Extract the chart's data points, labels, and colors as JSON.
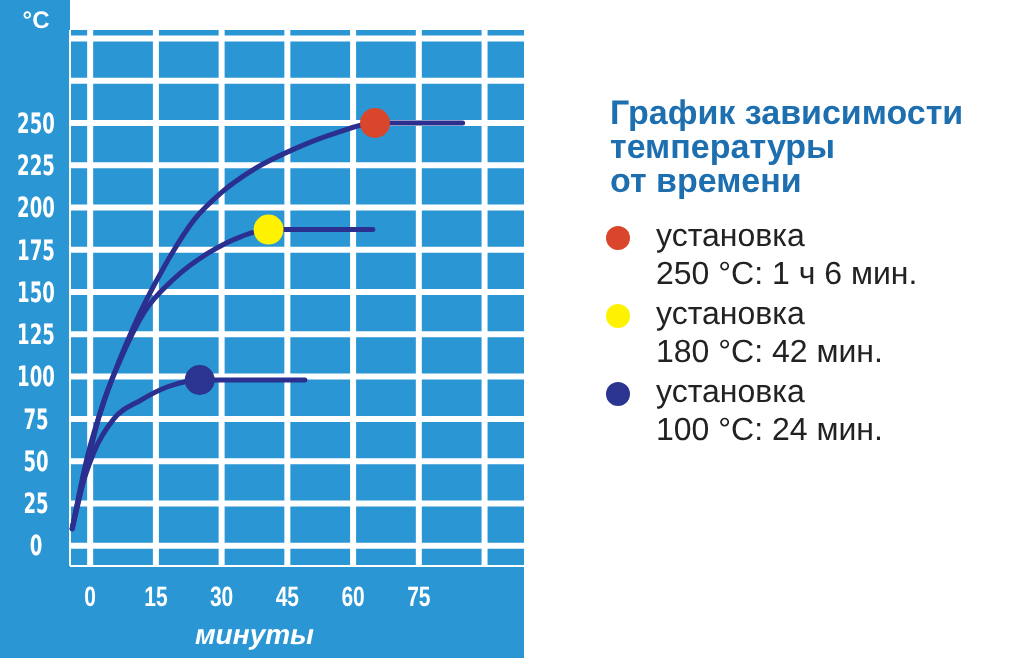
{
  "chart_data": {
    "type": "line",
    "title": "График зависимости температуры от времени",
    "xlabel": "минуты",
    "ylabel": "°C",
    "xlim": [
      -4.6,
      99
    ],
    "xticks": [
      0,
      15,
      30,
      45,
      60,
      75,
      {
        "value": 90,
        "label": null
      }
    ],
    "ylim": [
      -12,
      305
    ],
    "yticks": [
      0,
      25,
      50,
      75,
      100,
      125,
      150,
      175,
      200,
      225,
      250,
      {
        "value": 275,
        "label": null
      },
      {
        "value": 300,
        "label": null
      }
    ],
    "grid": true,
    "legend": "right",
    "line_style": "solid",
    "series": [
      {
        "color": "#2b2f8f",
        "marker": "none",
        "x": [
          -4.1,
          -0.8,
          3.8,
          10,
          16.9,
          23.8,
          30,
          37.6,
          46.9,
          56,
          65,
          85
        ],
        "values": [
          10,
          51,
          90,
          130,
          165,
          193,
          209,
          223,
          235,
          244,
          250,
          250
        ]
      },
      {
        "color": "#2b2f8f",
        "marker": "none",
        "x": [
          -4.1,
          -1.5,
          2.3,
          6.9,
          12.3,
          19.2,
          26.9,
          34.6,
          40.7,
          64.5
        ],
        "values": [
          10,
          39,
          79,
          110,
          138,
          158,
          173,
          183,
          187,
          187
        ]
      },
      {
        "color": "#2b2f8f",
        "marker": "none",
        "x": [
          -4.1,
          -2.3,
          0.8,
          5.4,
          11.5,
          17.7,
          25,
          49
        ],
        "values": [
          10,
          31,
          55,
          75,
          86,
          94,
          98,
          98
        ]
      },
      {
        "type": "scatter",
        "name": "установка\n250 °C: 1 ч 6 мин.",
        "color": "#d9462b",
        "marker": "circle",
        "x": [
          65
        ],
        "values": [
          250
        ]
      },
      {
        "type": "scatter",
        "name": "установка\n180 °C: 42 мин.",
        "color": "#fff200",
        "marker": "circle",
        "x": [
          40.7
        ],
        "values": [
          187
        ]
      },
      {
        "type": "scatter",
        "name": "установка\n100 °C: 24 мин.",
        "color": "#2b3590",
        "marker": "circle",
        "x": [
          25
        ],
        "values": [
          98
        ]
      }
    ]
  }
}
